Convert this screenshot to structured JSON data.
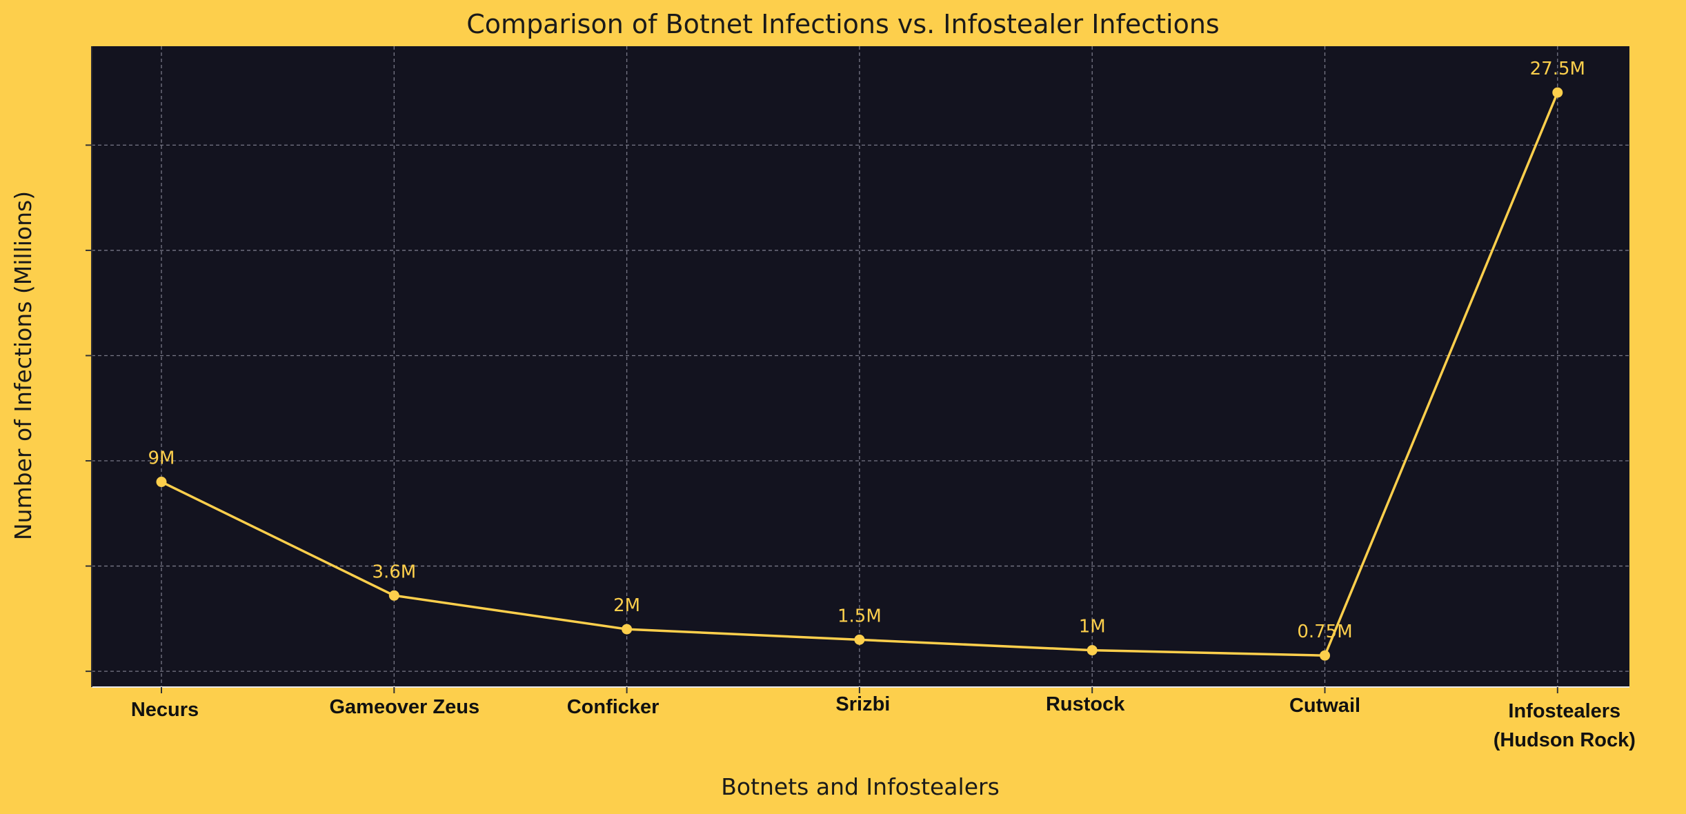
{
  "chart_data": {
    "type": "line",
    "title": "Comparison of Botnet Infections vs. Infostealer Infections",
    "xlabel": "Botnets and Infostealers",
    "ylabel": "Number of Infections (Millions)",
    "categories": [
      "Necurs",
      "Gameover Zeus",
      "Conficker",
      "Srizbi",
      "Rustock",
      "Cutwail",
      "Infostealers (Hudson Rock)"
    ],
    "category_lines": [
      [
        "Necurs"
      ],
      [
        "Gameover Zeus"
      ],
      [
        "Conficker"
      ],
      [
        "Srizbi"
      ],
      [
        "Rustock"
      ],
      [
        "Cutwail"
      ],
      [
        "Infostealers",
        "(Hudson Rock)"
      ]
    ],
    "values": [
      9,
      3.6,
      2,
      1.5,
      1,
      0.75,
      27.5
    ],
    "data_labels": [
      "9M",
      "3.6M",
      "2M",
      "1.5M",
      "1M",
      "0.75M",
      "27.5M"
    ],
    "ylim": [
      0,
      30
    ],
    "yticks": [
      0,
      5,
      10,
      15,
      20,
      25,
      30
    ],
    "ytick_labels_shown": false,
    "grid": true,
    "legend": "none",
    "colors": {
      "background": "#fdcf4c",
      "plot_background": "#13131f",
      "line": "#fdcf4c",
      "grid": "#8a8a9a"
    }
  }
}
